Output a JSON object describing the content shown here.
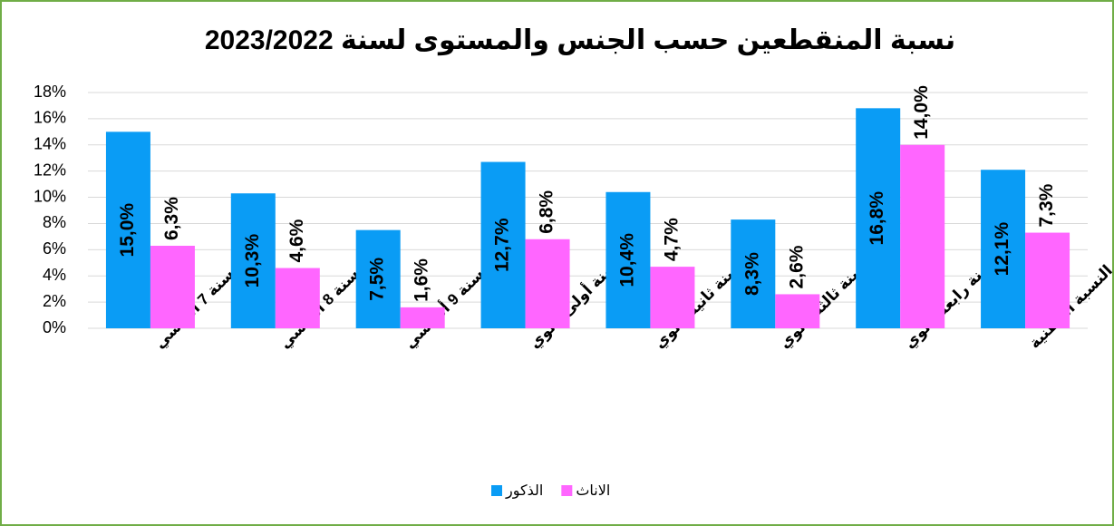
{
  "chart_data": {
    "type": "bar",
    "title": "نسبة المنقطعين حسب الجنس والمستوى لسنة 2023/2022",
    "categories": [
      "سنة 7 أساسي",
      "سنة 8 أساسي",
      "سنة 9 أساسي",
      "سنة أولى ثانوي",
      "سنة ثانية ثانوي",
      "سنة ثالثة ثانوي",
      "سنة رابعة ثانوي",
      "النسبة الوطنية"
    ],
    "series": [
      {
        "name": "الذكور",
        "color": "#0a9cf5",
        "values": [
          15.0,
          10.3,
          7.5,
          12.7,
          10.4,
          8.3,
          16.8,
          12.1
        ],
        "value_labels": [
          "15,0%",
          "10,3%",
          "7,5%",
          "12,7%",
          "10,4%",
          "8,3%",
          "16,8%",
          "12,1%"
        ]
      },
      {
        "name": "الاناث",
        "color": "#ff66ff",
        "values": [
          6.3,
          4.6,
          1.6,
          6.8,
          4.7,
          2.6,
          14.0,
          7.3
        ],
        "value_labels": [
          "6,3%",
          "4,6%",
          "1,6%",
          "6,8%",
          "4,7%",
          "2,6%",
          "14,0%",
          "7,3%"
        ]
      }
    ],
    "ylim": [
      0,
      18
    ],
    "yticks": [
      {
        "value": 0,
        "label": "0%"
      },
      {
        "value": 2,
        "label": "2%"
      },
      {
        "value": 4,
        "label": "4%"
      },
      {
        "value": 6,
        "label": "6%"
      },
      {
        "value": 8,
        "label": "8%"
      },
      {
        "value": 10,
        "label": "10%"
      },
      {
        "value": 12,
        "label": "12%"
      },
      {
        "value": 14,
        "label": "14%"
      },
      {
        "value": 16,
        "label": "16%"
      },
      {
        "value": 18,
        "label": "18%"
      }
    ],
    "grid": true,
    "legend": "bottom"
  }
}
